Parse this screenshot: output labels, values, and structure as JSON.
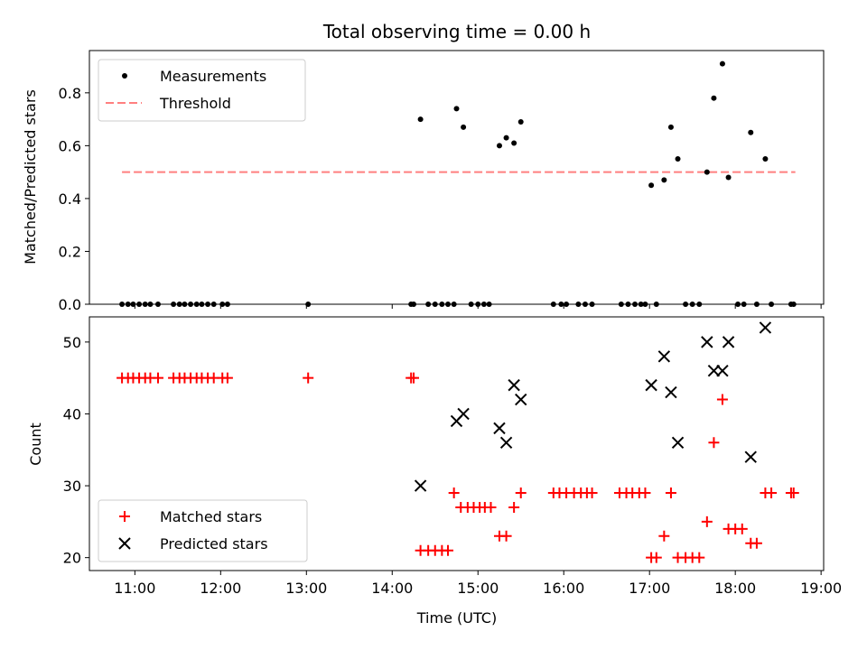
{
  "chart_data": [
    {
      "type": "scatter",
      "title": "Total observing time = 0.00 h",
      "xlabel": "",
      "ylabel": "Matched/Predicted stars",
      "xlim": [
        10.47,
        19.03
      ],
      "ylim": [
        0.0,
        0.96
      ],
      "yticks": [
        0.0,
        0.2,
        0.4,
        0.6,
        0.8
      ],
      "ytick_labels": [
        "0.0",
        "0.2",
        "0.4",
        "0.6",
        "0.8"
      ],
      "legend_position": "upper-left",
      "threshold": {
        "name": "Threshold",
        "value": 0.5,
        "x_range": [
          10.85,
          18.7
        ],
        "color": "#ff7f7f"
      },
      "series": [
        {
          "name": "Measurements",
          "color": "#000000",
          "marker": "dot",
          "points": [
            [
              10.85,
              0.0
            ],
            [
              10.92,
              0.0
            ],
            [
              10.98,
              0.0
            ],
            [
              11.05,
              0.0
            ],
            [
              11.12,
              0.0
            ],
            [
              11.18,
              0.0
            ],
            [
              11.27,
              0.0
            ],
            [
              11.45,
              0.0
            ],
            [
              11.52,
              0.0
            ],
            [
              11.58,
              0.0
            ],
            [
              11.65,
              0.0
            ],
            [
              11.72,
              0.0
            ],
            [
              11.78,
              0.0
            ],
            [
              11.85,
              0.0
            ],
            [
              11.92,
              0.0
            ],
            [
              12.02,
              0.0
            ],
            [
              12.08,
              0.0
            ],
            [
              13.02,
              0.0
            ],
            [
              14.22,
              0.0
            ],
            [
              14.25,
              0.0
            ],
            [
              14.33,
              0.7
            ],
            [
              14.42,
              0.0
            ],
            [
              14.5,
              0.0
            ],
            [
              14.58,
              0.0
            ],
            [
              14.65,
              0.0
            ],
            [
              14.72,
              0.0
            ],
            [
              14.75,
              0.74
            ],
            [
              14.83,
              0.67
            ],
            [
              14.92,
              0.0
            ],
            [
              15.0,
              0.0
            ],
            [
              15.07,
              0.0
            ],
            [
              15.13,
              0.0
            ],
            [
              15.25,
              0.6
            ],
            [
              15.33,
              0.63
            ],
            [
              15.42,
              0.61
            ],
            [
              15.5,
              0.69
            ],
            [
              15.88,
              0.0
            ],
            [
              15.97,
              0.0
            ],
            [
              16.03,
              0.0
            ],
            [
              16.17,
              0.0
            ],
            [
              16.25,
              0.0
            ],
            [
              16.33,
              0.0
            ],
            [
              16.67,
              0.0
            ],
            [
              16.75,
              0.0
            ],
            [
              16.83,
              0.0
            ],
            [
              16.9,
              0.0
            ],
            [
              16.95,
              0.0
            ],
            [
              17.02,
              0.45
            ],
            [
              17.08,
              0.0
            ],
            [
              17.17,
              0.47
            ],
            [
              17.25,
              0.67
            ],
            [
              17.33,
              0.55
            ],
            [
              17.42,
              0.0
            ],
            [
              17.5,
              0.0
            ],
            [
              17.58,
              0.0
            ],
            [
              17.67,
              0.5
            ],
            [
              17.75,
              0.78
            ],
            [
              17.85,
              0.91
            ],
            [
              17.92,
              0.48
            ],
            [
              18.03,
              0.0
            ],
            [
              18.1,
              0.0
            ],
            [
              18.18,
              0.65
            ],
            [
              18.25,
              0.0
            ],
            [
              18.35,
              0.55
            ],
            [
              18.42,
              0.0
            ],
            [
              18.65,
              0.0
            ],
            [
              18.68,
              0.0
            ]
          ]
        }
      ]
    },
    {
      "type": "scatter",
      "title": "",
      "xlabel": "Time (UTC)",
      "ylabel": "Count",
      "xlim": [
        10.47,
        19.03
      ],
      "ylim": [
        18.2,
        53.5
      ],
      "xticks": [
        11,
        12,
        13,
        14,
        15,
        16,
        17,
        18,
        19
      ],
      "xtick_labels": [
        "11:00",
        "12:00",
        "13:00",
        "14:00",
        "15:00",
        "16:00",
        "17:00",
        "18:00",
        "19:00"
      ],
      "yticks": [
        20,
        30,
        40,
        50
      ],
      "ytick_labels": [
        "20",
        "30",
        "40",
        "50"
      ],
      "legend_position": "lower-left",
      "series": [
        {
          "name": "Matched stars",
          "color": "#ff0000",
          "marker": "plus",
          "points": [
            [
              10.85,
              45
            ],
            [
              10.92,
              45
            ],
            [
              10.98,
              45
            ],
            [
              11.05,
              45
            ],
            [
              11.12,
              45
            ],
            [
              11.18,
              45
            ],
            [
              11.27,
              45
            ],
            [
              11.45,
              45
            ],
            [
              11.52,
              45
            ],
            [
              11.58,
              45
            ],
            [
              11.65,
              45
            ],
            [
              11.72,
              45
            ],
            [
              11.78,
              45
            ],
            [
              11.85,
              45
            ],
            [
              11.92,
              45
            ],
            [
              12.02,
              45
            ],
            [
              12.08,
              45
            ],
            [
              13.02,
              45
            ],
            [
              14.22,
              45
            ],
            [
              14.25,
              45
            ],
            [
              14.33,
              21
            ],
            [
              14.42,
              21
            ],
            [
              14.5,
              21
            ],
            [
              14.58,
              21
            ],
            [
              14.65,
              21
            ],
            [
              14.72,
              29
            ],
            [
              14.8,
              27
            ],
            [
              14.88,
              27
            ],
            [
              14.95,
              27
            ],
            [
              15.02,
              27
            ],
            [
              15.08,
              27
            ],
            [
              15.15,
              27
            ],
            [
              15.25,
              23
            ],
            [
              15.33,
              23
            ],
            [
              15.42,
              27
            ],
            [
              15.5,
              29
            ],
            [
              15.88,
              29
            ],
            [
              15.95,
              29
            ],
            [
              16.03,
              29
            ],
            [
              16.12,
              29
            ],
            [
              16.2,
              29
            ],
            [
              16.27,
              29
            ],
            [
              16.33,
              29
            ],
            [
              16.65,
              29
            ],
            [
              16.73,
              29
            ],
            [
              16.8,
              29
            ],
            [
              16.88,
              29
            ],
            [
              16.95,
              29
            ],
            [
              17.02,
              20
            ],
            [
              17.08,
              20
            ],
            [
              17.17,
              23
            ],
            [
              17.25,
              29
            ],
            [
              17.33,
              20
            ],
            [
              17.42,
              20
            ],
            [
              17.5,
              20
            ],
            [
              17.58,
              20
            ],
            [
              17.67,
              25
            ],
            [
              17.75,
              36
            ],
            [
              17.85,
              42
            ],
            [
              17.92,
              24
            ],
            [
              18.0,
              24
            ],
            [
              18.08,
              24
            ],
            [
              18.18,
              22
            ],
            [
              18.25,
              22
            ],
            [
              18.35,
              29
            ],
            [
              18.42,
              29
            ],
            [
              18.65,
              29
            ],
            [
              18.68,
              29
            ]
          ]
        },
        {
          "name": "Predicted stars",
          "color": "#000000",
          "marker": "x",
          "points": [
            [
              14.33,
              30
            ],
            [
              14.75,
              39
            ],
            [
              14.83,
              40
            ],
            [
              15.25,
              38
            ],
            [
              15.33,
              36
            ],
            [
              15.42,
              44
            ],
            [
              15.5,
              42
            ],
            [
              17.02,
              44
            ],
            [
              17.17,
              48
            ],
            [
              17.25,
              43
            ],
            [
              17.33,
              36
            ],
            [
              17.67,
              50
            ],
            [
              17.75,
              46
            ],
            [
              17.85,
              46
            ],
            [
              17.92,
              50
            ],
            [
              18.18,
              34
            ],
            [
              18.35,
              52
            ]
          ]
        }
      ]
    }
  ]
}
